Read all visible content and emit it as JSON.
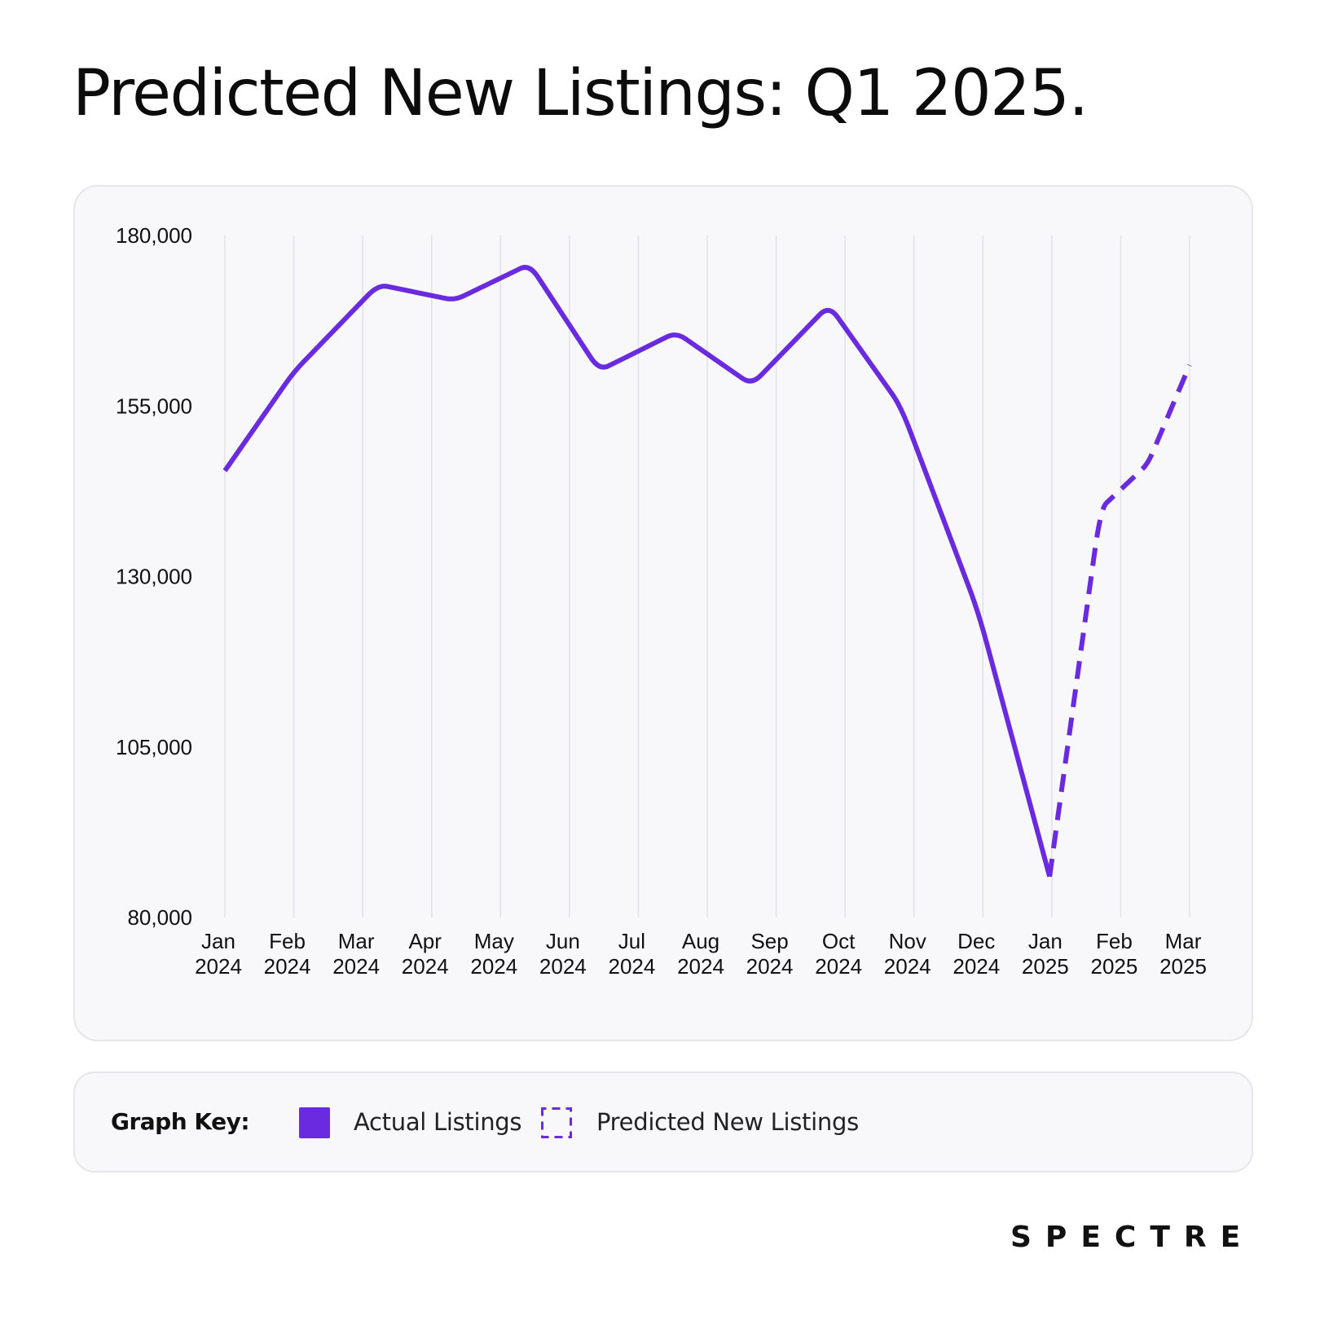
{
  "title": "Predicted New Listings: Q1 2025.",
  "brand": "SPECTRE",
  "colors": {
    "line": "#6a2be0",
    "grid": "#e2e2e6",
    "card": "#f8f8fa"
  },
  "legend": {
    "label": "Graph Key:",
    "items": [
      {
        "name": "Actual Listings",
        "style": "solid"
      },
      {
        "name": "Predicted New Listings",
        "style": "dashed"
      }
    ]
  },
  "chart_data": {
    "type": "line",
    "title": "Predicted New Listings: Q1 2025.",
    "xlabel": "",
    "ylabel": "",
    "ylim": [
      80000,
      180000
    ],
    "yticks": [
      "180,000",
      "155,000",
      "130,000",
      "105,000",
      "80,000"
    ],
    "ytick_values": [
      180000,
      155000,
      130000,
      105000,
      80000
    ],
    "grid": "vertical",
    "legend_position": "bottom",
    "categories": [
      [
        "Jan",
        "2024"
      ],
      [
        "Feb",
        "2024"
      ],
      [
        "Mar",
        "2024"
      ],
      [
        "Apr",
        "2024"
      ],
      [
        "May",
        "2024"
      ],
      [
        "Jun",
        "2024"
      ],
      [
        "Jul",
        "2024"
      ],
      [
        "Aug",
        "2024"
      ],
      [
        "Sep",
        "2024"
      ],
      [
        "Oct",
        "2024"
      ],
      [
        "Nov",
        "2024"
      ],
      [
        "Dec",
        "2024"
      ],
      [
        "Jan",
        "2025"
      ],
      [
        "Feb",
        "2025"
      ],
      [
        "Mar",
        "2025"
      ]
    ],
    "series": [
      {
        "name": "Actual Listings",
        "style": "solid",
        "points": [
          {
            "x": "2024-01-01",
            "y": 145500
          },
          {
            "x": "2024-02-01",
            "y": 160000
          },
          {
            "x": "2024-03-08",
            "y": 172800
          },
          {
            "x": "2024-04-11",
            "y": 170500
          },
          {
            "x": "2024-05-14",
            "y": 175800
          },
          {
            "x": "2024-06-14",
            "y": 160200
          },
          {
            "x": "2024-07-18",
            "y": 165800
          },
          {
            "x": "2024-08-21",
            "y": 158100
          },
          {
            "x": "2024-09-24",
            "y": 169800
          },
          {
            "x": "2024-10-26",
            "y": 155000
          },
          {
            "x": "2024-11-29",
            "y": 124800
          },
          {
            "x": "2024-12-31",
            "y": 86000
          }
        ]
      },
      {
        "name": "Predicted New Listings",
        "style": "dashed",
        "points": [
          {
            "x": "2024-12-31",
            "y": 86000
          },
          {
            "x": "2025-01-23",
            "y": 140000
          },
          {
            "x": "2025-02-12",
            "y": 146500
          },
          {
            "x": "2025-03-01",
            "y": 161000
          }
        ]
      }
    ]
  }
}
